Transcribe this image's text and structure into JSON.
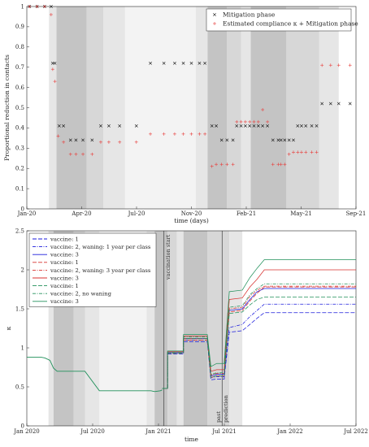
{
  "chart_data": [
    {
      "type": "scatter",
      "xlabel": "time (days)",
      "ylabel": "Proportional reduction in contacts",
      "ylim": [
        0,
        1
      ],
      "xlim": [
        "2020-01-20",
        "2021-09-21"
      ],
      "grid": false,
      "legend_position": "top-right",
      "x_ticks": [
        "Jan-20",
        "Apr-20",
        "Jul-20",
        "Nov-20",
        "Feb-21",
        "May-21",
        "Sep-21"
      ],
      "y_ticks": [
        "0",
        "0.1",
        "0.2",
        "0.3",
        "0.4",
        "0.5",
        "0.6",
        "0.7",
        "0.8",
        "0.9",
        "1"
      ],
      "shaded_periods": [
        {
          "start": "2020-03-01",
          "end": "2020-03-15",
          "shade": "light"
        },
        {
          "start": "2020-03-15",
          "end": "2020-05-10",
          "shade": "dark"
        },
        {
          "start": "2020-05-10",
          "end": "2020-06-10",
          "shade": "mid"
        },
        {
          "start": "2020-06-10",
          "end": "2020-07-20",
          "shade": "light"
        },
        {
          "start": "2020-07-20",
          "end": "2020-11-28",
          "shade": "lightest"
        },
        {
          "start": "2020-11-28",
          "end": "2020-12-20",
          "shade": "light"
        },
        {
          "start": "2020-12-20",
          "end": "2021-01-25",
          "shade": "dark"
        },
        {
          "start": "2021-01-25",
          "end": "2021-02-20",
          "shade": "mid"
        },
        {
          "start": "2021-02-20",
          "end": "2021-03-10",
          "shade": "light"
        },
        {
          "start": "2021-03-10",
          "end": "2021-05-15",
          "shade": "dark"
        },
        {
          "start": "2021-05-15",
          "end": "2021-07-15",
          "shade": "mid"
        },
        {
          "start": "2021-07-15",
          "end": "2021-08-20",
          "shade": "light"
        }
      ],
      "series": [
        {
          "name": "Mitigation phase",
          "marker": "x",
          "color": "#000000",
          "x": [
            "2020-01-25",
            "2020-02-08",
            "2020-02-22",
            "2020-03-05",
            "2020-03-08",
            "2020-03-12",
            "2020-03-20",
            "2020-03-28",
            "2020-04-10",
            "2020-04-20",
            "2020-05-03",
            "2020-05-20",
            "2020-06-05",
            "2020-06-20",
            "2020-07-10",
            "2020-08-10",
            "2020-09-05",
            "2020-09-30",
            "2020-10-20",
            "2020-11-05",
            "2020-11-20",
            "2020-12-05",
            "2020-12-15",
            "2020-12-28",
            "2021-01-05",
            "2021-01-15",
            "2021-01-25",
            "2021-02-05",
            "2021-02-12",
            "2021-02-20",
            "2021-02-28",
            "2021-03-08",
            "2021-03-16",
            "2021-03-24",
            "2021-04-01",
            "2021-04-10",
            "2021-04-20",
            "2021-04-30",
            "2021-05-05",
            "2021-05-12",
            "2021-05-20",
            "2021-05-28",
            "2021-06-05",
            "2021-06-12",
            "2021-06-20",
            "2021-07-01",
            "2021-07-10",
            "2021-07-20",
            "2021-08-05",
            "2021-08-20",
            "2021-09-10"
          ],
          "values": [
            1.0,
            1.0,
            1.0,
            1.0,
            0.72,
            0.72,
            0.41,
            0.41,
            0.34,
            0.34,
            0.34,
            0.34,
            0.41,
            0.41,
            0.41,
            0.41,
            0.72,
            0.72,
            0.72,
            0.72,
            0.72,
            0.72,
            0.72,
            0.41,
            0.41,
            0.34,
            0.34,
            0.34,
            0.41,
            0.41,
            0.41,
            0.41,
            0.41,
            0.41,
            0.41,
            0.41,
            0.34,
            0.34,
            0.34,
            0.34,
            0.34,
            0.34,
            0.41,
            0.41,
            0.41,
            0.41,
            0.41,
            0.52,
            0.52,
            0.52,
            0.52
          ]
        },
        {
          "name": "Estimated compliance κ + Mitigation phase",
          "marker": "+",
          "color": "#e8403e",
          "x": [
            "2020-01-25",
            "2020-02-08",
            "2020-02-22",
            "2020-03-05",
            "2020-03-08",
            "2020-03-12",
            "2020-03-18",
            "2020-03-28",
            "2020-04-10",
            "2020-04-20",
            "2020-05-03",
            "2020-05-20",
            "2020-06-05",
            "2020-06-20",
            "2020-07-10",
            "2020-08-10",
            "2020-09-05",
            "2020-09-30",
            "2020-10-20",
            "2020-11-05",
            "2020-11-20",
            "2020-12-05",
            "2020-12-15",
            "2020-12-28",
            "2021-01-05",
            "2021-01-15",
            "2021-01-25",
            "2021-02-05",
            "2021-02-12",
            "2021-02-20",
            "2021-02-28",
            "2021-03-08",
            "2021-03-16",
            "2021-03-24",
            "2021-04-01",
            "2021-04-10",
            "2021-04-20",
            "2021-04-30",
            "2021-05-05",
            "2021-05-12",
            "2021-05-20",
            "2021-05-28",
            "2021-06-05",
            "2021-06-12",
            "2021-06-20",
            "2021-07-01",
            "2021-07-10",
            "2021-07-20",
            "2021-08-05",
            "2021-08-20",
            "2021-09-10"
          ],
          "values": [
            1.0,
            1.0,
            1.0,
            0.96,
            0.69,
            0.63,
            0.36,
            0.33,
            0.27,
            0.27,
            0.27,
            0.27,
            0.33,
            0.33,
            0.33,
            0.33,
            0.37,
            0.37,
            0.37,
            0.37,
            0.37,
            0.37,
            0.37,
            0.21,
            0.22,
            0.22,
            0.22,
            0.22,
            0.43,
            0.43,
            0.43,
            0.43,
            0.43,
            0.43,
            0.49,
            0.43,
            0.22,
            0.22,
            0.22,
            0.22,
            0.27,
            0.28,
            0.28,
            0.28,
            0.28,
            0.28,
            0.28,
            0.71,
            0.71,
            0.71,
            0.71
          ]
        }
      ]
    },
    {
      "type": "line",
      "xlabel": "time",
      "ylabel": "κ",
      "ylim": [
        0,
        2.5
      ],
      "xlim": [
        "2020-01-01",
        "2022-07-01"
      ],
      "grid": false,
      "legend_position": "top-left",
      "x_ticks": [
        "Jan 2020",
        "Jul 2020",
        "Jan 2021",
        "Jul 2021",
        "Jan 2022",
        "Jul 2022"
      ],
      "y_ticks": [
        "0",
        "0.5",
        "1",
        "1.5",
        "2",
        "2.5"
      ],
      "annotations": [
        {
          "text": "vaccination start",
          "x": "2021-01-15"
        },
        {
          "text": "past",
          "x": "2021-06-25"
        },
        {
          "text": "prediction",
          "x": "2021-06-25"
        }
      ],
      "shaded_periods": [
        {
          "start": "2020-03-01",
          "end": "2020-03-15",
          "shade": "light"
        },
        {
          "start": "2020-03-15",
          "end": "2020-05-10",
          "shade": "dark"
        },
        {
          "start": "2020-05-10",
          "end": "2020-06-10",
          "shade": "mid"
        },
        {
          "start": "2020-06-10",
          "end": "2020-07-20",
          "shade": "light"
        },
        {
          "start": "2020-07-20",
          "end": "2020-11-28",
          "shade": "lightest"
        },
        {
          "start": "2020-11-28",
          "end": "2020-12-20",
          "shade": "light"
        },
        {
          "start": "2020-12-20",
          "end": "2021-01-25",
          "shade": "dark"
        },
        {
          "start": "2021-01-25",
          "end": "2021-02-20",
          "shade": "mid"
        },
        {
          "start": "2021-02-20",
          "end": "2021-03-10",
          "shade": "light"
        },
        {
          "start": "2021-03-10",
          "end": "2021-05-15",
          "shade": "dark"
        },
        {
          "start": "2021-05-15",
          "end": "2021-07-15",
          "shade": "mid"
        },
        {
          "start": "2021-07-15",
          "end": "2021-08-20",
          "shade": "light"
        }
      ],
      "base": {
        "x": [
          "2020-01-01",
          "2020-02-10",
          "2020-02-20",
          "2020-03-05",
          "2020-03-15",
          "2020-03-25",
          "2020-05-10",
          "2020-06-10",
          "2020-07-20",
          "2020-11-28",
          "2020-12-10",
          "2020-12-20",
          "2021-01-05",
          "2021-01-10"
        ],
        "values": [
          0.88,
          0.88,
          0.87,
          0.84,
          0.74,
          0.7,
          0.7,
          0.7,
          0.45,
          0.45,
          0.45,
          0.44,
          0.45,
          0.46
        ]
      },
      "schedule_x": [
        "2021-01-10",
        "2021-01-25",
        "2021-02-20",
        "2021-03-10",
        "2021-05-15",
        "2021-05-25",
        "2021-06-10",
        "2021-07-01",
        "2021-07-15",
        "2021-08-20",
        "2021-09-10",
        "2021-09-30",
        "2021-10-20",
        "2021-11-15",
        "2022-07-01"
      ],
      "series": [
        {
          "name": "vaccine: 1",
          "color": "#1a1adc",
          "dash": "5,2",
          "values": [
            0.48,
            0.92,
            0.92,
            1.08,
            1.08,
            0.59,
            0.6,
            0.62,
            1.2,
            1.22,
            1.3,
            1.38,
            1.45,
            1.45,
            1.45
          ]
        },
        {
          "name": "vaccine: 2, waning: 1 year per class",
          "color": "#1a1adc",
          "dash": "4,1.5,1,1.5",
          "values": [
            0.48,
            0.93,
            0.93,
            1.1,
            1.1,
            0.62,
            0.63,
            0.65,
            1.26,
            1.3,
            1.4,
            1.48,
            1.56,
            1.56,
            1.56
          ]
        },
        {
          "name": "vaccine: 3",
          "color": "#1a1adc",
          "dash": "",
          "values": [
            0.48,
            0.94,
            0.94,
            1.12,
            1.12,
            0.64,
            0.66,
            0.68,
            1.48,
            1.5,
            1.62,
            1.72,
            1.76,
            1.76,
            1.76
          ]
        },
        {
          "name": "vaccine: 1",
          "color": "#d8312f",
          "dash": "5,2",
          "values": [
            0.48,
            0.93,
            0.93,
            1.1,
            1.1,
            0.62,
            0.64,
            0.66,
            1.46,
            1.48,
            1.6,
            1.7,
            1.78,
            1.78,
            1.78
          ]
        },
        {
          "name": "vaccine: 2, waning: 3 year per class",
          "color": "#d8312f",
          "dash": "4,1.5,1,1.5",
          "values": [
            0.48,
            0.94,
            0.94,
            1.12,
            1.12,
            0.65,
            0.67,
            0.69,
            1.5,
            1.52,
            1.66,
            1.74,
            1.79,
            1.79,
            1.79
          ]
        },
        {
          "name": "vaccine: 3",
          "color": "#d8312f",
          "dash": "",
          "values": [
            0.48,
            0.95,
            0.95,
            1.15,
            1.15,
            0.7,
            0.72,
            0.74,
            1.62,
            1.64,
            1.78,
            1.88,
            2.0,
            2.0,
            2.0
          ]
        },
        {
          "name": "vaccine: 1",
          "color": "#20905a",
          "dash": "5,2",
          "values": [
            0.48,
            0.93,
            0.93,
            1.12,
            1.12,
            0.62,
            0.64,
            0.66,
            1.44,
            1.46,
            1.55,
            1.62,
            1.65,
            1.65,
            1.65
          ]
        },
        {
          "name": "vaccine: 2, no waning",
          "color": "#20905a",
          "dash": "4,1.5,1,1.5",
          "values": [
            0.48,
            0.94,
            0.94,
            1.14,
            1.14,
            0.66,
            0.68,
            0.7,
            1.52,
            1.54,
            1.68,
            1.76,
            1.82,
            1.82,
            1.82
          ]
        },
        {
          "name": "vaccine: 3",
          "color": "#20905a",
          "dash": "",
          "values": [
            0.48,
            0.96,
            0.96,
            1.17,
            1.17,
            0.76,
            0.8,
            0.82,
            1.72,
            1.74,
            1.9,
            2.02,
            2.13,
            2.13,
            2.13
          ]
        }
      ]
    }
  ]
}
